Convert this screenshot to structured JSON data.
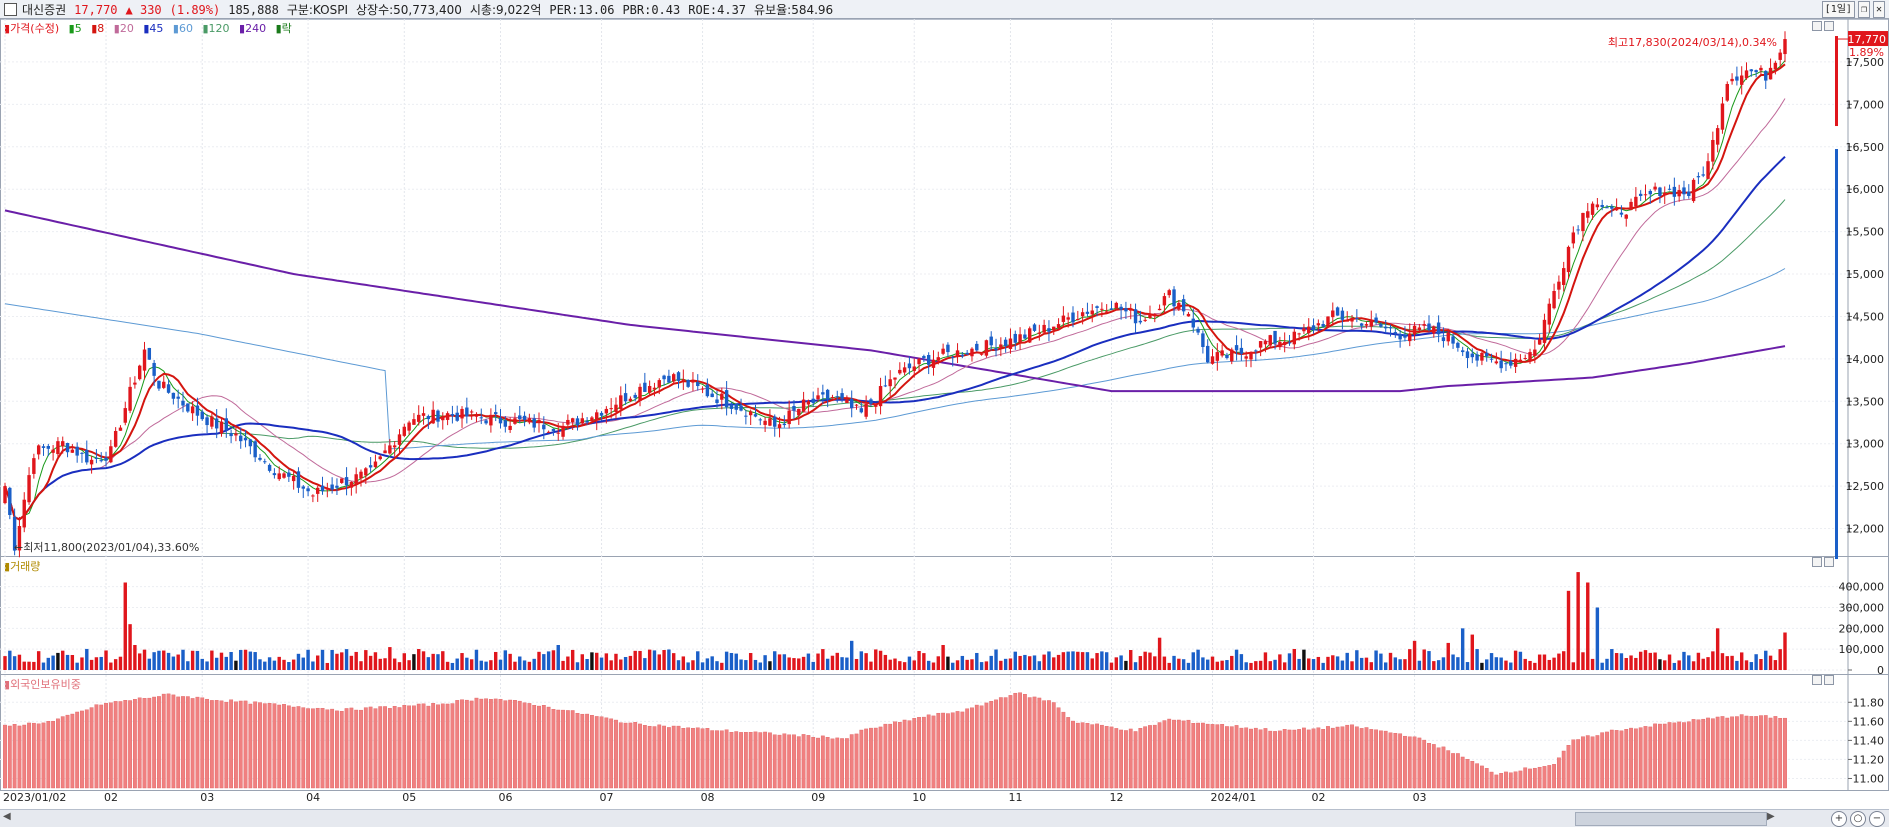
{
  "header": {
    "name": "대신증권",
    "price": "17,770",
    "change": "▲ 330",
    "change_pct": "(1.89%)",
    "volume": "185,888",
    "market": "구분:KOSPI",
    "shares": "상장수:50,773,400",
    "mcap": "시총:9,022억",
    "per": "PER:13.06",
    "pbr": "PBR:0.43",
    "roe": "ROE:4.37",
    "float": "유보율:584.96",
    "period_button": "[1일]",
    "restore_icon": "restore-icon",
    "close_icon": "close-icon"
  },
  "price_legend": {
    "price": "가격(수정)",
    "ma5": "5",
    "ma8": "8",
    "ma20": "20",
    "ma45": "45",
    "ma60": "60",
    "ma120": "120",
    "ma240": "240",
    "rak": "락"
  },
  "volume_legend": {
    "label": "거래량"
  },
  "foreign_legend": {
    "label": "외국인보유비중"
  },
  "colors": {
    "up": "#e0161c",
    "down": "#1a5fc8",
    "ma5": "#1a9a1a",
    "ma8": "#d4150f",
    "ma20": "#c06a9a",
    "ma45": "#1a2ebf",
    "ma60": "#4a9a66",
    "ma120": "#5d9ad4",
    "ma240": "#6a1fa8",
    "foreign": "#f08080"
  },
  "chart_data": [
    {
      "type": "candlestick",
      "title": "가격(수정)",
      "x_labels": [
        "2023/01/02",
        "02",
        "03",
        "04",
        "05",
        "06",
        "07",
        "08",
        "09",
        "10",
        "11",
        "12",
        "2024/01",
        "02",
        "03"
      ],
      "ylim": [
        11700,
        17900
      ],
      "y_ticks": [
        "17,500",
        "17,000",
        "16,500",
        "16,000",
        "15,500",
        "15,000",
        "14,500",
        "14,000",
        "13,500",
        "13,000",
        "12,500",
        "12,000"
      ],
      "y_tick_values": [
        17500,
        17000,
        16500,
        16000,
        15500,
        15000,
        14500,
        14000,
        13500,
        13000,
        12500,
        12000
      ],
      "current_price_label": "17,770",
      "current_pct_label": "1.89%",
      "current_price": 17770,
      "annotation_high": "최고17,830(2024/03/14),0.34%",
      "annotation_low": "최저11,800(2023/01/04),33.60%",
      "anchors": [
        [
          0,
          12500
        ],
        [
          2,
          11800
        ],
        [
          6,
          12900
        ],
        [
          12,
          13000
        ],
        [
          18,
          12800
        ],
        [
          22,
          12900
        ],
        [
          26,
          13600
        ],
        [
          29,
          14100
        ],
        [
          32,
          13700
        ],
        [
          40,
          13350
        ],
        [
          48,
          13100
        ],
        [
          56,
          12700
        ],
        [
          64,
          12400
        ],
        [
          70,
          12550
        ],
        [
          76,
          12650
        ],
        [
          84,
          13300
        ],
        [
          92,
          13350
        ],
        [
          100,
          13300
        ],
        [
          108,
          13250
        ],
        [
          116,
          13200
        ],
        [
          124,
          13400
        ],
        [
          132,
          13650
        ],
        [
          138,
          13800
        ],
        [
          146,
          13600
        ],
        [
          154,
          13400
        ],
        [
          160,
          13200
        ],
        [
          166,
          13450
        ],
        [
          172,
          13550
        ],
        [
          178,
          13350
        ],
        [
          185,
          13800
        ],
        [
          192,
          14000
        ],
        [
          200,
          14100
        ],
        [
          208,
          14200
        ],
        [
          216,
          14350
        ],
        [
          224,
          14550
        ],
        [
          230,
          14650
        ],
        [
          236,
          14450
        ],
        [
          242,
          14750
        ],
        [
          246,
          14550
        ],
        [
          250,
          14000
        ],
        [
          256,
          14050
        ],
        [
          262,
          14200
        ],
        [
          268,
          14250
        ],
        [
          276,
          14500
        ],
        [
          282,
          14450
        ],
        [
          290,
          14300
        ],
        [
          296,
          14350
        ],
        [
          300,
          14250
        ],
        [
          306,
          14000
        ],
        [
          312,
          13950
        ],
        [
          318,
          14100
        ],
        [
          322,
          14800
        ],
        [
          326,
          15500
        ],
        [
          330,
          15900
        ],
        [
          334,
          15700
        ],
        [
          338,
          15800
        ],
        [
          344,
          16000
        ],
        [
          350,
          15950
        ],
        [
          354,
          16300
        ],
        [
          358,
          17300
        ],
        [
          362,
          17400
        ],
        [
          366,
          17350
        ],
        [
          370,
          17770
        ]
      ]
    },
    {
      "type": "bar",
      "title": "거래량",
      "ylim": [
        0,
        480000
      ],
      "y_ticks": [
        "400,000",
        "300,000",
        "200,000",
        "100,000",
        "0"
      ],
      "y_tick_values": [
        400000,
        300000,
        200000,
        100000,
        0
      ],
      "base_volume": 75000,
      "spikes": [
        [
          25,
          420000
        ],
        [
          26,
          220000
        ],
        [
          27,
          120000
        ],
        [
          80,
          110000
        ],
        [
          115,
          120000
        ],
        [
          160,
          90000
        ],
        [
          176,
          140000
        ],
        [
          195,
          120000
        ],
        [
          240,
          155000
        ],
        [
          293,
          140000
        ],
        [
          300,
          130000
        ],
        [
          303,
          200000
        ],
        [
          305,
          170000
        ],
        [
          325,
          380000
        ],
        [
          327,
          470000
        ],
        [
          329,
          420000
        ],
        [
          331,
          300000
        ],
        [
          356,
          200000
        ],
        [
          370,
          180000
        ]
      ]
    },
    {
      "type": "bar",
      "title": "외국인보유비중",
      "ylim": [
        10.9,
        11.95
      ],
      "y_ticks": [
        "11.80",
        "11.60",
        "11.40",
        "11.20",
        "11.00"
      ],
      "y_tick_values": [
        11.8,
        11.6,
        11.4,
        11.2,
        11.0
      ],
      "anchors": [
        [
          0,
          11.55
        ],
        [
          10,
          11.6
        ],
        [
          20,
          11.78
        ],
        [
          34,
          11.88
        ],
        [
          45,
          11.82
        ],
        [
          70,
          11.72
        ],
        [
          90,
          11.78
        ],
        [
          100,
          11.85
        ],
        [
          110,
          11.78
        ],
        [
          130,
          11.58
        ],
        [
          150,
          11.5
        ],
        [
          175,
          11.42
        ],
        [
          178,
          11.5
        ],
        [
          190,
          11.64
        ],
        [
          200,
          11.72
        ],
        [
          210,
          11.9
        ],
        [
          218,
          11.8
        ],
        [
          222,
          11.6
        ],
        [
          235,
          11.5
        ],
        [
          242,
          11.62
        ],
        [
          255,
          11.55
        ],
        [
          265,
          11.5
        ],
        [
          280,
          11.55
        ],
        [
          292,
          11.45
        ],
        [
          300,
          11.3
        ],
        [
          310,
          11.05
        ],
        [
          316,
          11.1
        ],
        [
          322,
          11.15
        ],
        [
          326,
          11.4
        ],
        [
          334,
          11.5
        ],
        [
          346,
          11.58
        ],
        [
          360,
          11.66
        ],
        [
          370,
          11.64
        ]
      ]
    }
  ]
}
